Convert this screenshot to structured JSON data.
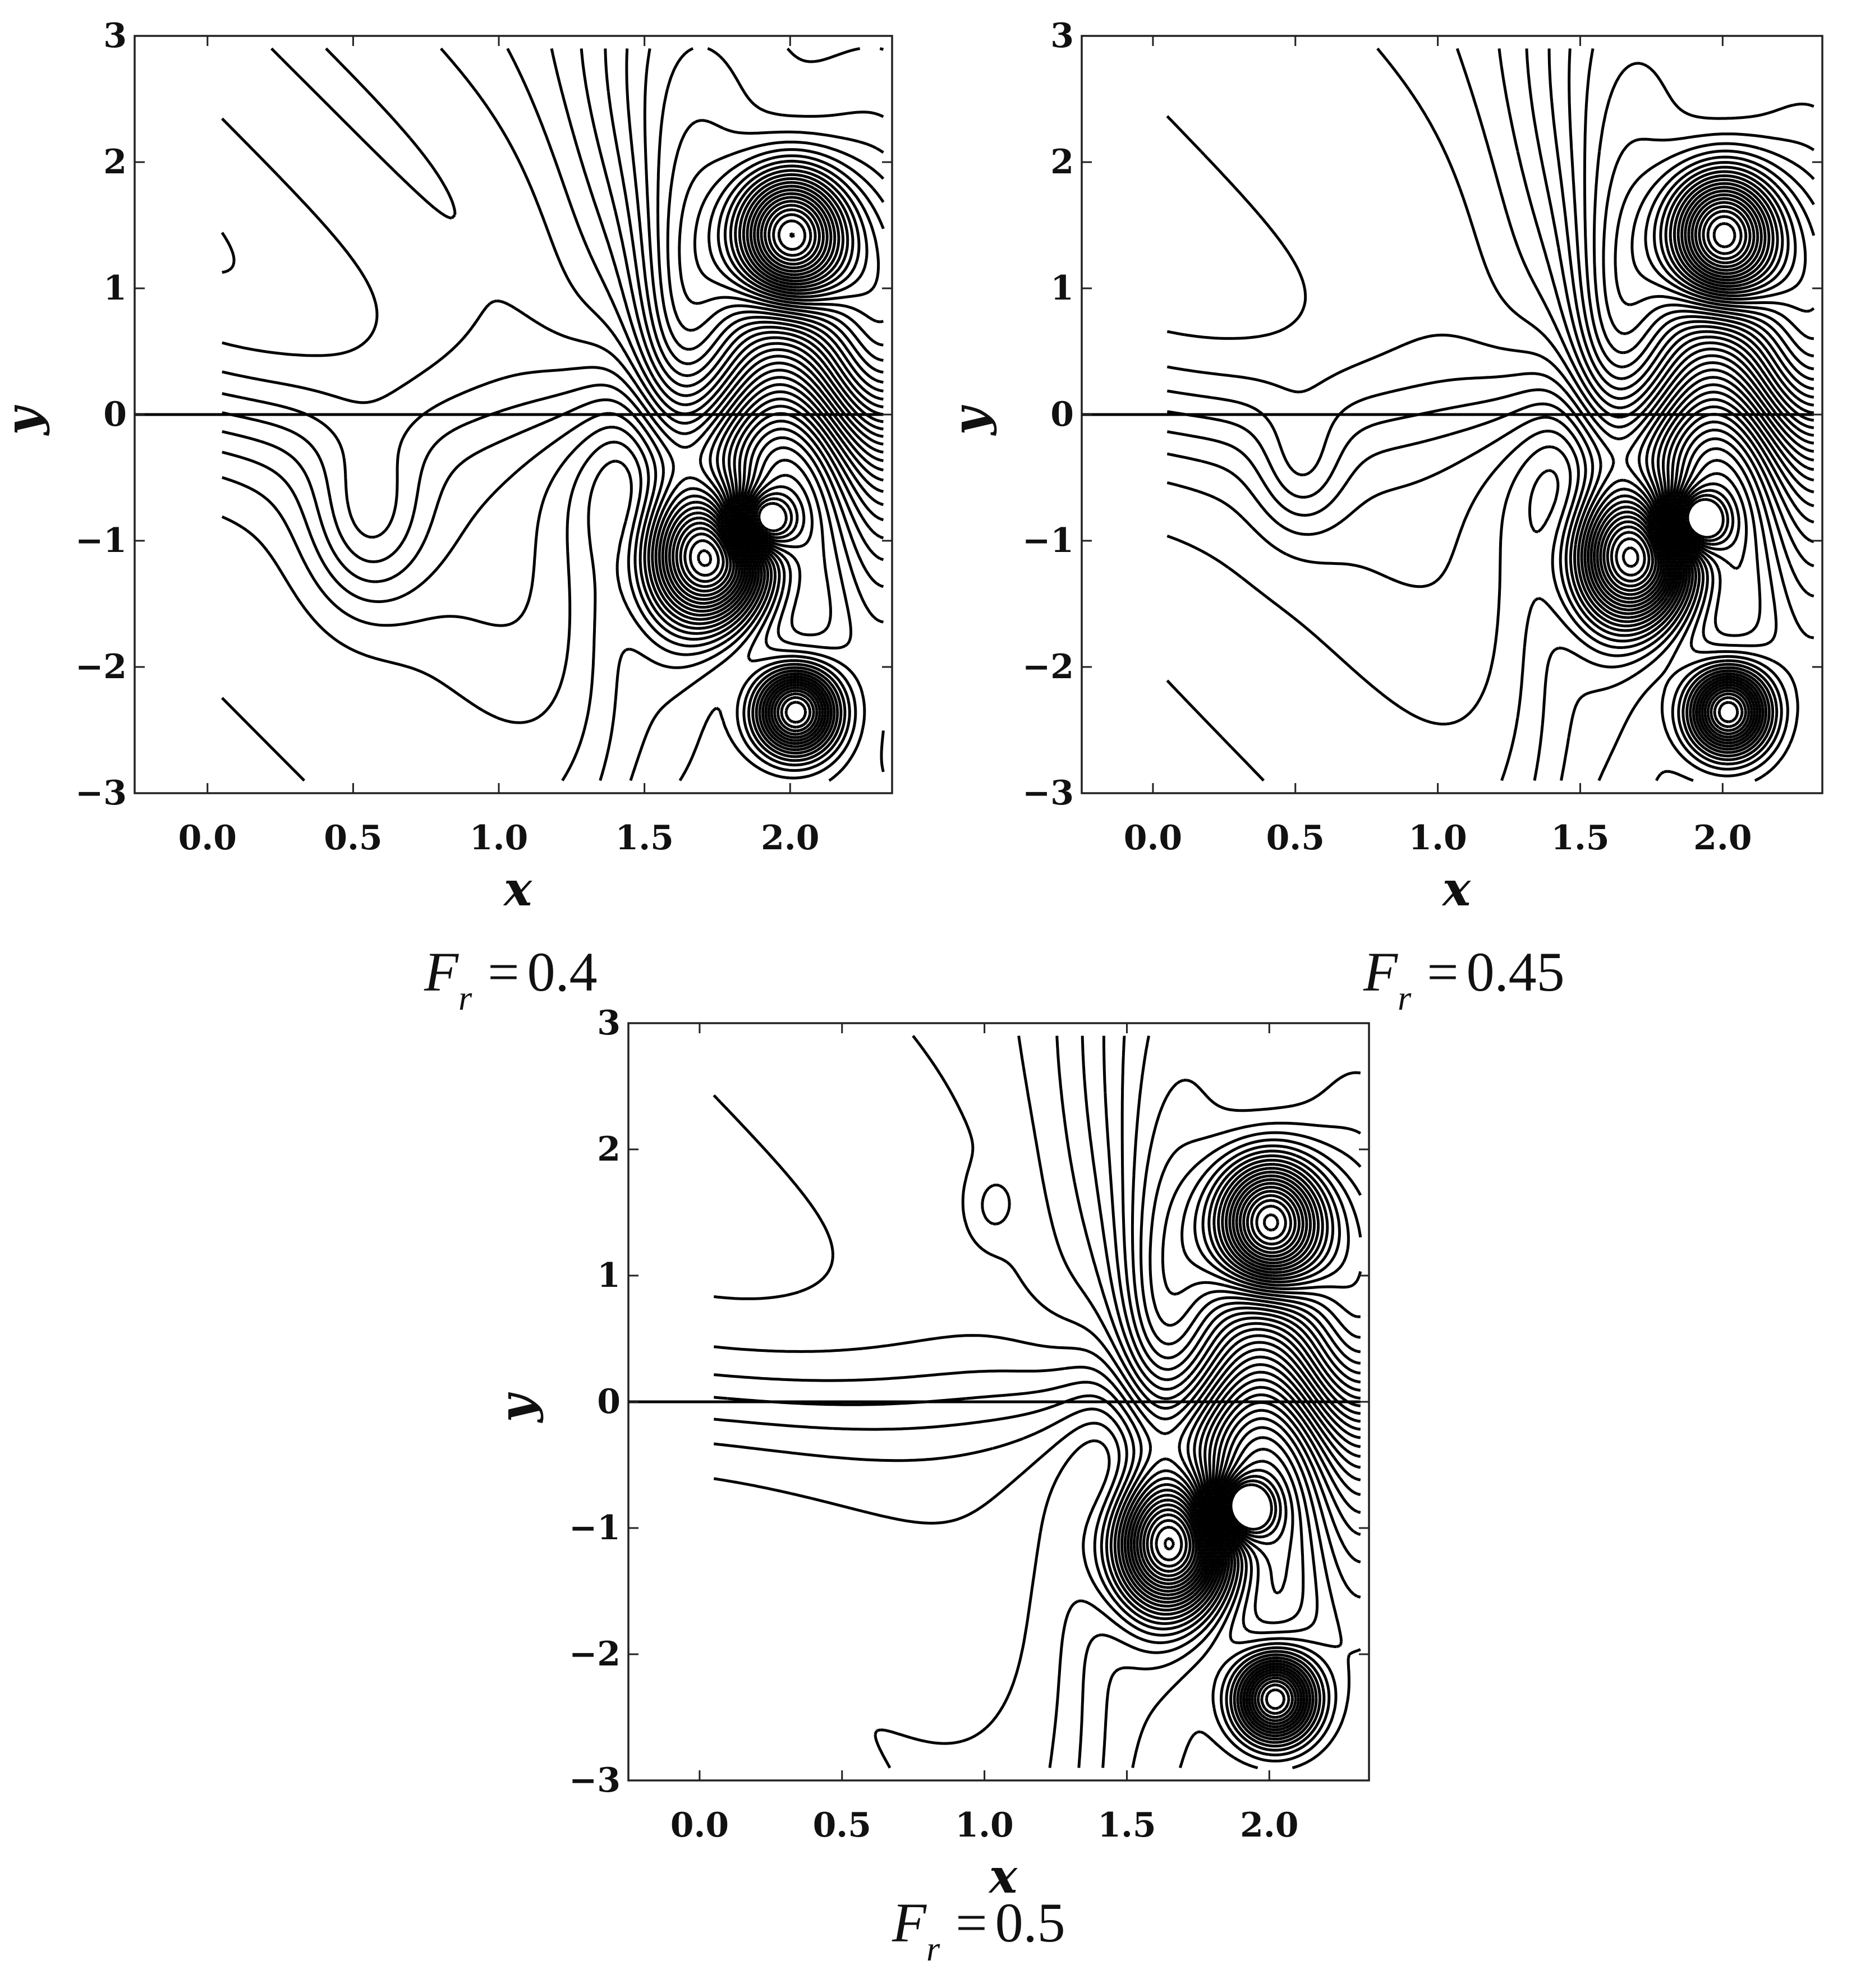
{
  "chart_data": [
    {
      "type": "contour",
      "xlabel": "x",
      "ylabel": "y",
      "xlim": [
        -0.25,
        2.35
      ],
      "ylim": [
        -3,
        3
      ],
      "x_ticks": [
        "0.0",
        "0.5",
        "1.0",
        "1.5",
        "2.0"
      ],
      "y_ticks": [
        "−3",
        "−2",
        "−1",
        "0",
        "1",
        "2",
        "3"
      ],
      "caption": {
        "symbol": "F",
        "subscript": "r",
        "equals": "=",
        "value": "0.4"
      },
      "centerline": {
        "y": 0
      },
      "features": [
        {
          "kind": "center",
          "x": 2.0,
          "y": 1.4
        },
        {
          "kind": "center",
          "x": 1.75,
          "y": -1.15
        },
        {
          "kind": "center",
          "x": 2.02,
          "y": -2.35
        },
        {
          "kind": "center",
          "x": 0.55,
          "y": -0.85
        },
        {
          "kind": "closed-loop",
          "x": [
            0.33,
            0.87
          ],
          "y": [
            -1.7,
            1.0
          ]
        },
        {
          "kind": "saddle",
          "x": 1.9,
          "y": -0.85
        }
      ]
    },
    {
      "type": "contour",
      "xlabel": "x",
      "ylabel": "y",
      "xlim": [
        -0.25,
        2.35
      ],
      "ylim": [
        -3,
        3
      ],
      "x_ticks": [
        "0.0",
        "0.5",
        "1.0",
        "1.5",
        "2.0"
      ],
      "y_ticks": [
        "−3",
        "−2",
        "−1",
        "0",
        "1",
        "2",
        "3"
      ],
      "caption": {
        "symbol": "F",
        "subscript": "r",
        "equals": "=",
        "value": "0.45"
      },
      "centerline": {
        "y": 0
      },
      "features": [
        {
          "kind": "center",
          "x": 2.0,
          "y": 1.4
        },
        {
          "kind": "center",
          "x": 1.72,
          "y": -1.15
        },
        {
          "kind": "center",
          "x": 2.02,
          "y": -2.35
        },
        {
          "kind": "closed-loop",
          "x": [
            0.4,
            0.62
          ],
          "y": [
            -1.05,
            0.18
          ]
        },
        {
          "kind": "saddle",
          "x": 1.9,
          "y": -0.85
        }
      ]
    },
    {
      "type": "contour",
      "xlabel": "x",
      "ylabel": "y",
      "xlim": [
        -0.25,
        2.35
      ],
      "ylim": [
        -3,
        3
      ],
      "x_ticks": [
        "0.0",
        "0.5",
        "1.0",
        "1.5",
        "2.0"
      ],
      "y_ticks": [
        "−3",
        "−2",
        "−1",
        "0",
        "1",
        "2",
        "3"
      ],
      "caption": {
        "symbol": "F",
        "subscript": "r",
        "equals": "=",
        "value": "0.5"
      },
      "centerline": {
        "y": 0
      },
      "features": [
        {
          "kind": "center",
          "x": 2.02,
          "y": 1.45
        },
        {
          "kind": "center",
          "x": 1.7,
          "y": -1.2
        },
        {
          "kind": "center",
          "x": 2.02,
          "y": -2.35
        },
        {
          "kind": "closed-loop",
          "x": [
            0.98,
            1.08
          ],
          "y": [
            1.3,
            1.85
          ]
        },
        {
          "kind": "saddle",
          "x": 1.9,
          "y": -0.85
        }
      ]
    }
  ]
}
